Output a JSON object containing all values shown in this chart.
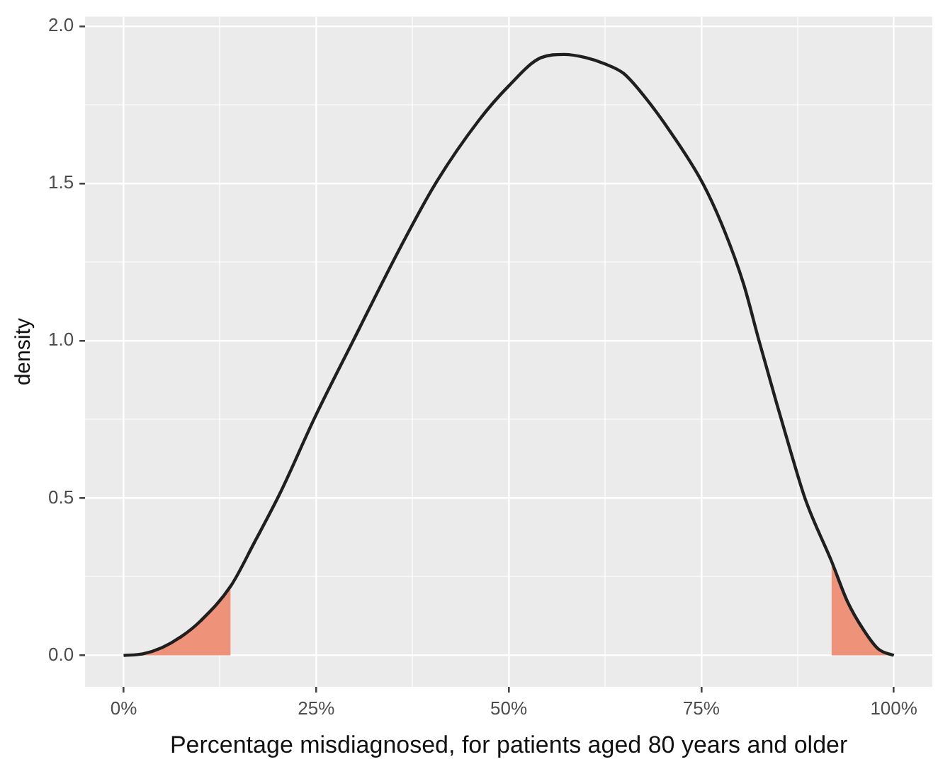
{
  "chart_data": {
    "type": "line",
    "xlabel": "Percentage misdiagnosed, for patients aged 80 years and older",
    "ylabel": "density",
    "xlim": [
      -5,
      105
    ],
    "ylim": [
      -0.1,
      2.03
    ],
    "xticks": [
      {
        "value": 0,
        "label": "0%"
      },
      {
        "value": 12.5,
        "label": null
      },
      {
        "value": 25,
        "label": "25%"
      },
      {
        "value": 37.5,
        "label": null
      },
      {
        "value": 50,
        "label": "50%"
      },
      {
        "value": 62.5,
        "label": null
      },
      {
        "value": 75,
        "label": "75%"
      },
      {
        "value": 87.5,
        "label": null
      },
      {
        "value": 100,
        "label": "100%"
      }
    ],
    "yticks": [
      {
        "value": 0,
        "label": "0.0"
      },
      {
        "value": 0.25,
        "label": null
      },
      {
        "value": 0.5,
        "label": "0.5"
      },
      {
        "value": 0.75,
        "label": null
      },
      {
        "value": 1,
        "label": "1.0"
      },
      {
        "value": 1.25,
        "label": null
      },
      {
        "value": 1.5,
        "label": "1.5"
      },
      {
        "value": 1.75,
        "label": null
      },
      {
        "value": 2,
        "label": "2.0"
      }
    ],
    "grid": true,
    "marker": "none",
    "line_style": "solid",
    "series": [
      {
        "type": "area",
        "color": "#ee9279",
        "x": [
          0,
          2.5,
          5,
          7.5,
          10,
          12,
          13.9
        ],
        "values": [
          0,
          0.005,
          0.025,
          0.06,
          0.11,
          0.16,
          0.22
        ]
      },
      {
        "type": "area",
        "color": "#ee9279",
        "x": [
          91.9,
          94,
          96.1,
          98,
          100
        ],
        "values": [
          0.3,
          0.17,
          0.08,
          0.02,
          0
        ]
      },
      {
        "color": "#1f1f1f",
        "x": [
          0,
          2.5,
          5,
          7.5,
          10,
          13.9,
          17,
          20.4,
          24.8,
          29.8,
          36,
          40.5,
          46.1,
          50,
          54.2,
          57.2,
          60,
          62.5,
          64.9,
          67.5,
          71.1,
          75.2,
          78,
          80.5,
          82.5,
          84.8,
          86.7,
          88.6,
          91.9,
          94,
          96.1,
          98,
          100
        ],
        "values": [
          0,
          0.005,
          0.025,
          0.06,
          0.11,
          0.22,
          0.36,
          0.52,
          0.755,
          1.0,
          1.3,
          1.5,
          1.7,
          1.81,
          1.9,
          1.91,
          1.9,
          1.88,
          1.85,
          1.78,
          1.66,
          1.5,
          1.35,
          1.18,
          1.0,
          0.8,
          0.64,
          0.49,
          0.3,
          0.17,
          0.08,
          0.02,
          0
        ]
      }
    ]
  }
}
